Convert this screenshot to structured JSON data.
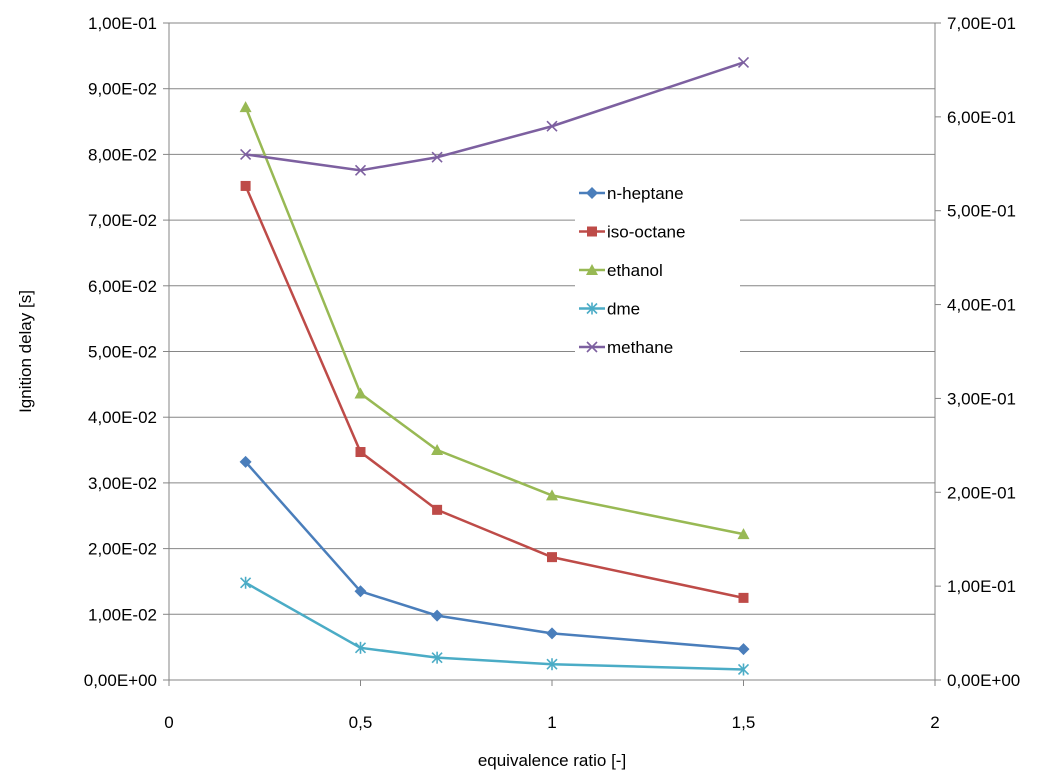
{
  "chart_data": {
    "type": "line",
    "xlabel": "equivalence ratio  [-]",
    "ylabel": "Ignition delay [s]",
    "xlim": [
      0,
      2
    ],
    "ylim": [
      0,
      0.1
    ],
    "y2lim": [
      0,
      0.7
    ],
    "x_ticks": [
      "0",
      "0,5",
      "1",
      "1,5",
      "2"
    ],
    "y_ticks": [
      "0,00E+00",
      "1,00E-02",
      "2,00E-02",
      "3,00E-02",
      "4,00E-02",
      "5,00E-02",
      "6,00E-02",
      "7,00E-02",
      "8,00E-02",
      "9,00E-02",
      "1,00E-01"
    ],
    "y2_ticks": [
      "0,00E+00",
      "1,00E-01",
      "2,00E-01",
      "3,00E-01",
      "4,00E-01",
      "5,00E-01",
      "6,00E-01",
      "7,00E-01"
    ],
    "grid": true,
    "legend_position": "center-right",
    "x": [
      0.2,
      0.5,
      0.7,
      1.0,
      1.5
    ],
    "series": [
      {
        "name": "n-heptane",
        "axis": "left",
        "color": "#4a7ebb",
        "marker": "diamond",
        "values": [
          0.0332,
          0.0135,
          0.0098,
          0.0071,
          0.0047
        ]
      },
      {
        "name": "iso-octane",
        "axis": "left",
        "color": "#be4b48",
        "marker": "square",
        "values": [
          0.0752,
          0.0347,
          0.0259,
          0.0187,
          0.0125
        ]
      },
      {
        "name": "ethanol",
        "axis": "left",
        "color": "#98b954",
        "marker": "triangle",
        "values": [
          0.0872,
          0.0436,
          0.035,
          0.0281,
          0.0222
        ]
      },
      {
        "name": "dme",
        "axis": "left",
        "color": "#4bacc6",
        "marker": "asterisk",
        "values": [
          0.0148,
          0.0049,
          0.0034,
          0.0024,
          0.0016
        ]
      },
      {
        "name": "methane",
        "axis": "right",
        "color": "#7d60a0",
        "marker": "x",
        "values": [
          0.56,
          0.543,
          0.557,
          0.59,
          0.658
        ]
      }
    ]
  }
}
